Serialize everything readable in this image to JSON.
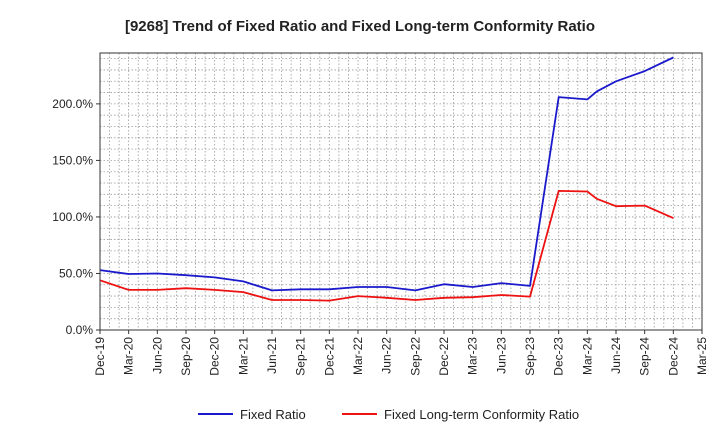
{
  "chart_data": {
    "type": "line",
    "title": "[9268]  Trend of Fixed Ratio and Fixed Long-term Conformity Ratio",
    "xlabel": "",
    "ylabel": "",
    "ylim": [
      0,
      245
    ],
    "yticks": [
      0,
      50,
      100,
      150,
      200
    ],
    "ytick_labels": [
      "0.0%",
      "50.0%",
      "100.0%",
      "150.0%",
      "200.0%"
    ],
    "x_axis_labels": [
      "Dec-19",
      "Mar-20",
      "Jun-20",
      "Sep-20",
      "Dec-20",
      "Mar-21",
      "Jun-21",
      "Sep-21",
      "Dec-21",
      "Mar-22",
      "Jun-22",
      "Sep-22",
      "Dec-22",
      "Mar-23",
      "Jun-23",
      "Sep-23",
      "Dec-23",
      "Mar-24",
      "Jun-24",
      "Sep-24",
      "Dec-24",
      "Mar-25"
    ],
    "grid": true,
    "legend_position": "bottom",
    "series": [
      {
        "name": "Fixed Ratio",
        "color": "#1a1acc",
        "points": [
          [
            0,
            53
          ],
          [
            1,
            49.5
          ],
          [
            2,
            50
          ],
          [
            3,
            48.5
          ],
          [
            4,
            46.5
          ],
          [
            5,
            43
          ],
          [
            6,
            35
          ],
          [
            7,
            36
          ],
          [
            8,
            36
          ],
          [
            9,
            38
          ],
          [
            10,
            38
          ],
          [
            11,
            35
          ],
          [
            12,
            40.5
          ],
          [
            13,
            38
          ],
          [
            14,
            41.5
          ],
          [
            15,
            39
          ],
          [
            16,
            206
          ],
          [
            17,
            204
          ],
          [
            17.33,
            211
          ],
          [
            18,
            220
          ],
          [
            19,
            229
          ],
          [
            20,
            241
          ]
        ]
      },
      {
        "name": "Fixed Long-term Conformity Ratio",
        "color": "#ee1111",
        "points": [
          [
            0,
            44
          ],
          [
            1,
            35.5
          ],
          [
            2,
            35.5
          ],
          [
            3,
            37
          ],
          [
            4,
            35.5
          ],
          [
            5,
            33.5
          ],
          [
            6,
            26.5
          ],
          [
            7,
            26.5
          ],
          [
            8,
            26
          ],
          [
            9,
            30
          ],
          [
            10,
            28.5
          ],
          [
            11,
            26.5
          ],
          [
            12,
            28.5
          ],
          [
            13,
            29
          ],
          [
            14,
            31
          ],
          [
            15,
            29.5
          ],
          [
            16,
            123
          ],
          [
            17,
            122.5
          ],
          [
            17.33,
            116
          ],
          [
            18,
            109.5
          ],
          [
            19,
            110
          ],
          [
            20,
            99
          ]
        ]
      }
    ]
  }
}
